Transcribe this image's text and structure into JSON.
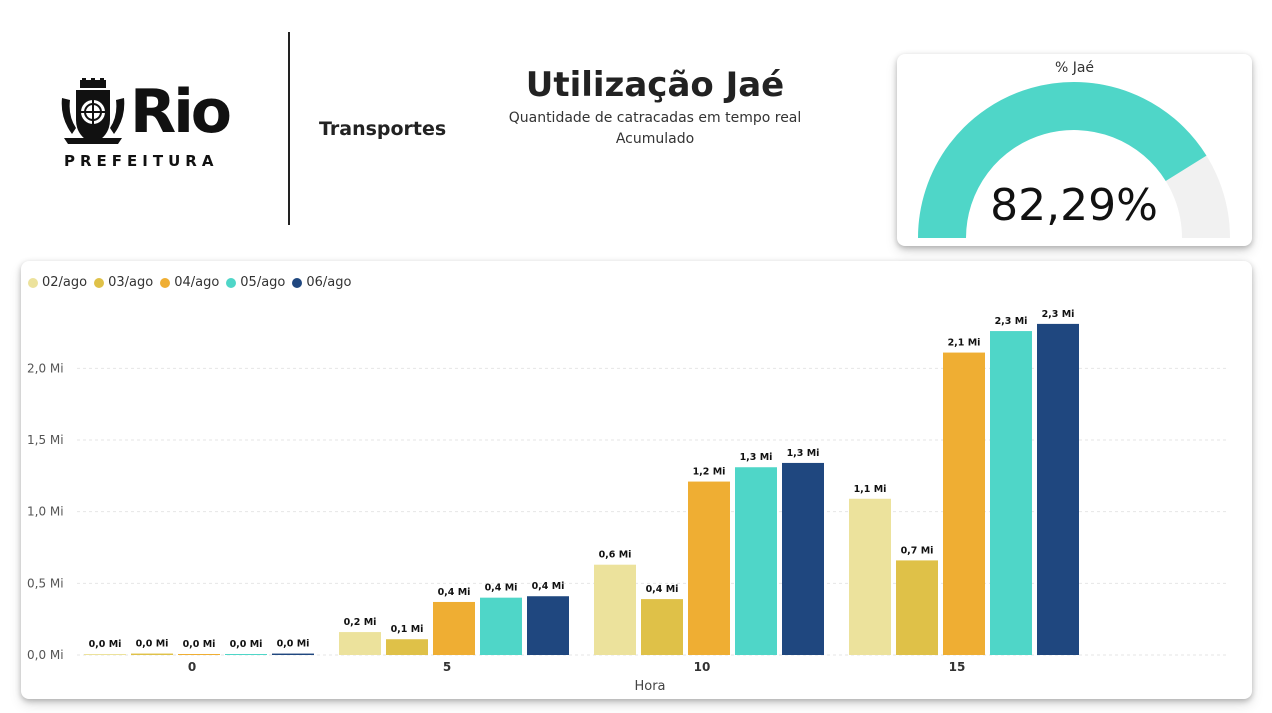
{
  "header": {
    "brand": {
      "word": "Rio",
      "sub": "PREFEITURA"
    },
    "section": "Transportes",
    "title": "Utilização Jaé",
    "subtitle": "Quantidade de catracadas em tempo real",
    "subtitle2": "Acumulado"
  },
  "gauge": {
    "title": "% Jaé",
    "value_label": "82,29%",
    "value": 0.8229,
    "fill_color": "#4fd6c8",
    "track_color": "#f1f1f1"
  },
  "chart_data": {
    "type": "bar",
    "xlabel": "Hora",
    "ylabel": "",
    "ylim": [
      0,
      2.4
    ],
    "yticks": [
      {
        "value": 0,
        "label": "0,0 Mi"
      },
      {
        "value": 0.5,
        "label": "0,5 Mi"
      },
      {
        "value": 1.0,
        "label": "1,0 Mi"
      },
      {
        "value": 1.5,
        "label": "1,5 Mi"
      },
      {
        "value": 2.0,
        "label": "2,0 Mi"
      }
    ],
    "categories": [
      "0",
      "5",
      "10",
      "15"
    ],
    "grid": true,
    "legend_position": "top-left",
    "series": [
      {
        "name": "02/ago",
        "color": "#ece29c",
        "values": [
          0.005,
          0.16,
          0.63,
          1.09
        ],
        "labels": [
          "0,0 Mi",
          "0,2 Mi",
          "0,6 Mi",
          "1,1 Mi"
        ]
      },
      {
        "name": "03/ago",
        "color": "#dfc148",
        "values": [
          0.01,
          0.11,
          0.39,
          0.66
        ],
        "labels": [
          "0,0 Mi",
          "0,1 Mi",
          "0,4 Mi",
          "0,7 Mi"
        ]
      },
      {
        "name": "04/ago",
        "color": "#efae33",
        "values": [
          0.005,
          0.37,
          1.21,
          2.11
        ],
        "labels": [
          "0,0 Mi",
          "0,4 Mi",
          "1,2 Mi",
          "2,1 Mi"
        ]
      },
      {
        "name": "05/ago",
        "color": "#4fd6c8",
        "values": [
          0.005,
          0.4,
          1.31,
          2.26
        ],
        "labels": [
          "0,0 Mi",
          "0,4 Mi",
          "1,3 Mi",
          "2,3 Mi"
        ]
      },
      {
        "name": "06/ago",
        "color": "#1f477f",
        "values": [
          0.01,
          0.41,
          1.34,
          2.31
        ],
        "labels": [
          "0,0 Mi",
          "0,4 Mi",
          "1,3 Mi",
          "2,3 Mi"
        ]
      }
    ]
  }
}
